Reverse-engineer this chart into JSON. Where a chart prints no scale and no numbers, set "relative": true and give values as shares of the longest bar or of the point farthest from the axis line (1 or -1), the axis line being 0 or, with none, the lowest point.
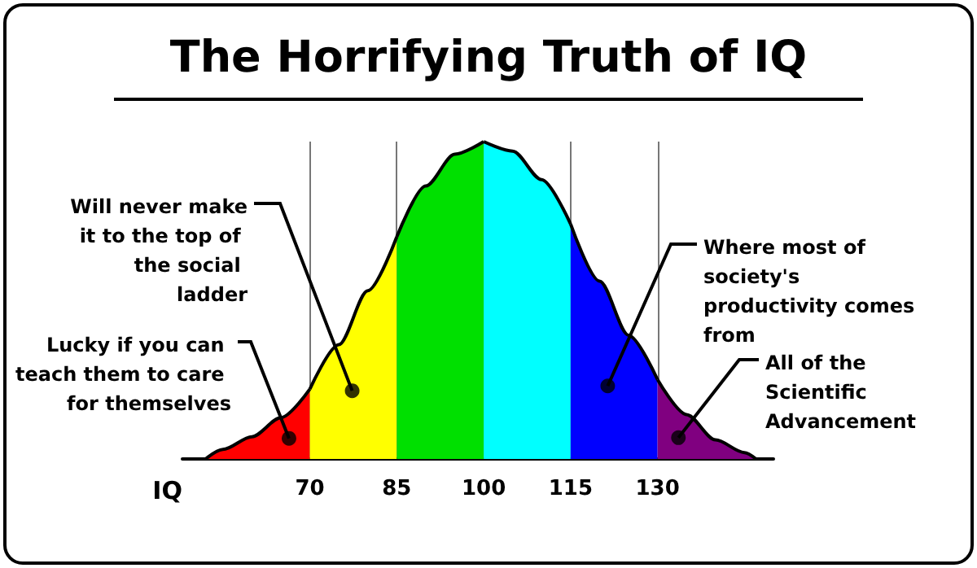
{
  "chart_data": {
    "type": "area",
    "title": "The Horrifying Truth of IQ",
    "xlabel": "IQ",
    "relative": true,
    "xlim": [
      48,
      150
    ],
    "xticks": [
      70,
      85,
      100,
      115,
      130
    ],
    "grid": "x",
    "tick_labels": "x",
    "series": [
      {
        "color": "#ff0000",
        "x": [
          52,
          55,
          60,
          65,
          70
        ],
        "values": [
          0,
          0.03,
          0.07,
          0.13,
          0.22
        ]
      },
      {
        "color": "#ffff00",
        "x": [
          70,
          75,
          80,
          85
        ],
        "values": [
          0.22,
          0.36,
          0.53,
          0.7
        ]
      },
      {
        "color": "#00e000",
        "x": [
          85,
          90,
          95,
          100
        ],
        "values": [
          0.7,
          0.86,
          0.96,
          1
        ]
      },
      {
        "color": "#00ffff",
        "x": [
          100,
          105,
          110,
          115
        ],
        "values": [
          1,
          0.97,
          0.88,
          0.74
        ]
      },
      {
        "color": "#0000ff",
        "x": [
          115,
          120,
          125,
          130
        ],
        "values": [
          0.74,
          0.56,
          0.39,
          0.25
        ]
      },
      {
        "color": "#800080",
        "x": [
          130,
          135,
          140,
          145,
          147
        ],
        "values": [
          0.25,
          0.14,
          0.06,
          0.02,
          0
        ]
      }
    ],
    "annotations": [
      {
        "text": "Lucky if you can teach them to care for themselves",
        "x": 66.4,
        "y": 0.065
      },
      {
        "text": "Will never make it to the top of the social ladder",
        "x": 77.3,
        "y": 0.215
      },
      {
        "text": "Where most of society's productivity comes from",
        "x": 121.4,
        "y": 0.23
      },
      {
        "text": "All of the Scientific Advancement",
        "x": 133.6,
        "y": 0.067
      }
    ]
  }
}
